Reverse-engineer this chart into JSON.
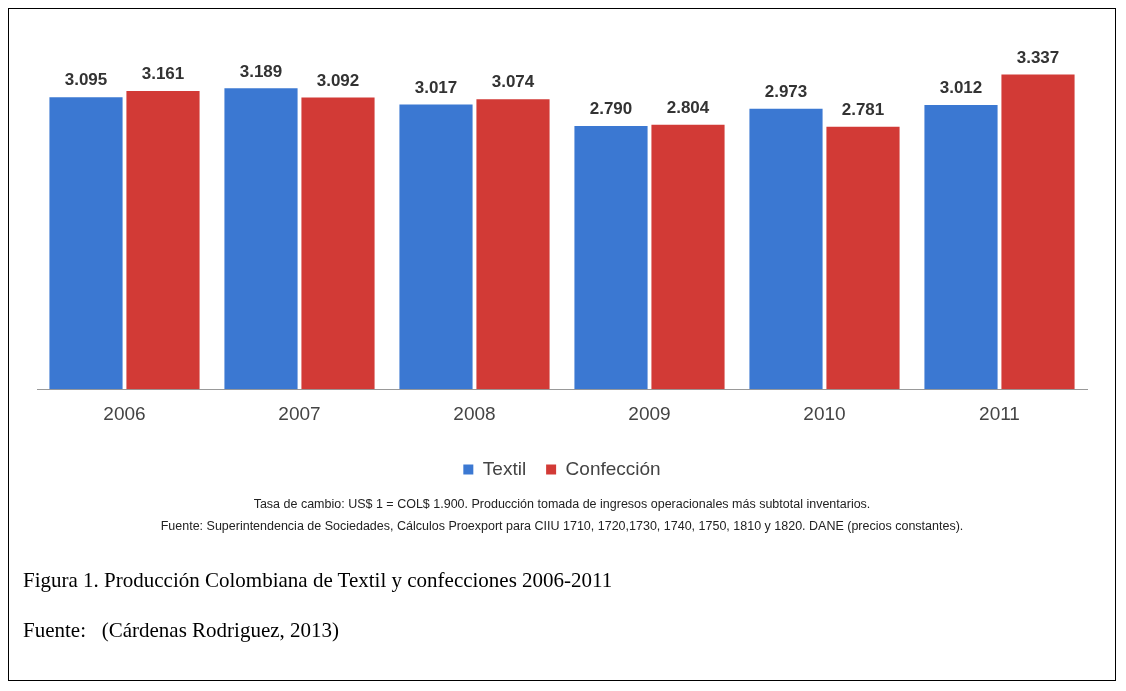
{
  "chart_data": {
    "type": "bar",
    "categories": [
      "2006",
      "2007",
      "2008",
      "2009",
      "2010",
      "2011"
    ],
    "series": [
      {
        "name": "Textil",
        "color": "#3b78d2",
        "values": [
          3.095,
          3.189,
          3.017,
          2.79,
          2.973,
          3.012
        ],
        "value_labels": [
          "3.095",
          "3.189",
          "3.017",
          "2.790",
          "2.973",
          "3.012"
        ]
      },
      {
        "name": "Confección",
        "color": "#d23a36",
        "values": [
          3.161,
          3.092,
          3.074,
          2.804,
          2.781,
          3.337
        ],
        "value_labels": [
          "3.161",
          "3.092",
          "3.074",
          "2.804",
          "2.781",
          "3.337"
        ]
      }
    ],
    "tick_labels": "x",
    "grid": false,
    "legend": "bottom",
    "annotations": [
      "Tasa de cambio: US$ 1 = COL$ 1.900. Producción tomada de ingresos operacionales más subtotal inventarios.",
      "Fuente: Superintendencia de Sociedades, Cálculos Proexport para CIIU 1710, 1720,1730, 1740, 1750, 1810 y 1820. DANE (precios constantes).",
      "Figura 1. Producción Colombiana de Textil y confecciones 2006-2011",
      "Fuente:   (Cárdenas Rodriguez, 2013)"
    ]
  }
}
